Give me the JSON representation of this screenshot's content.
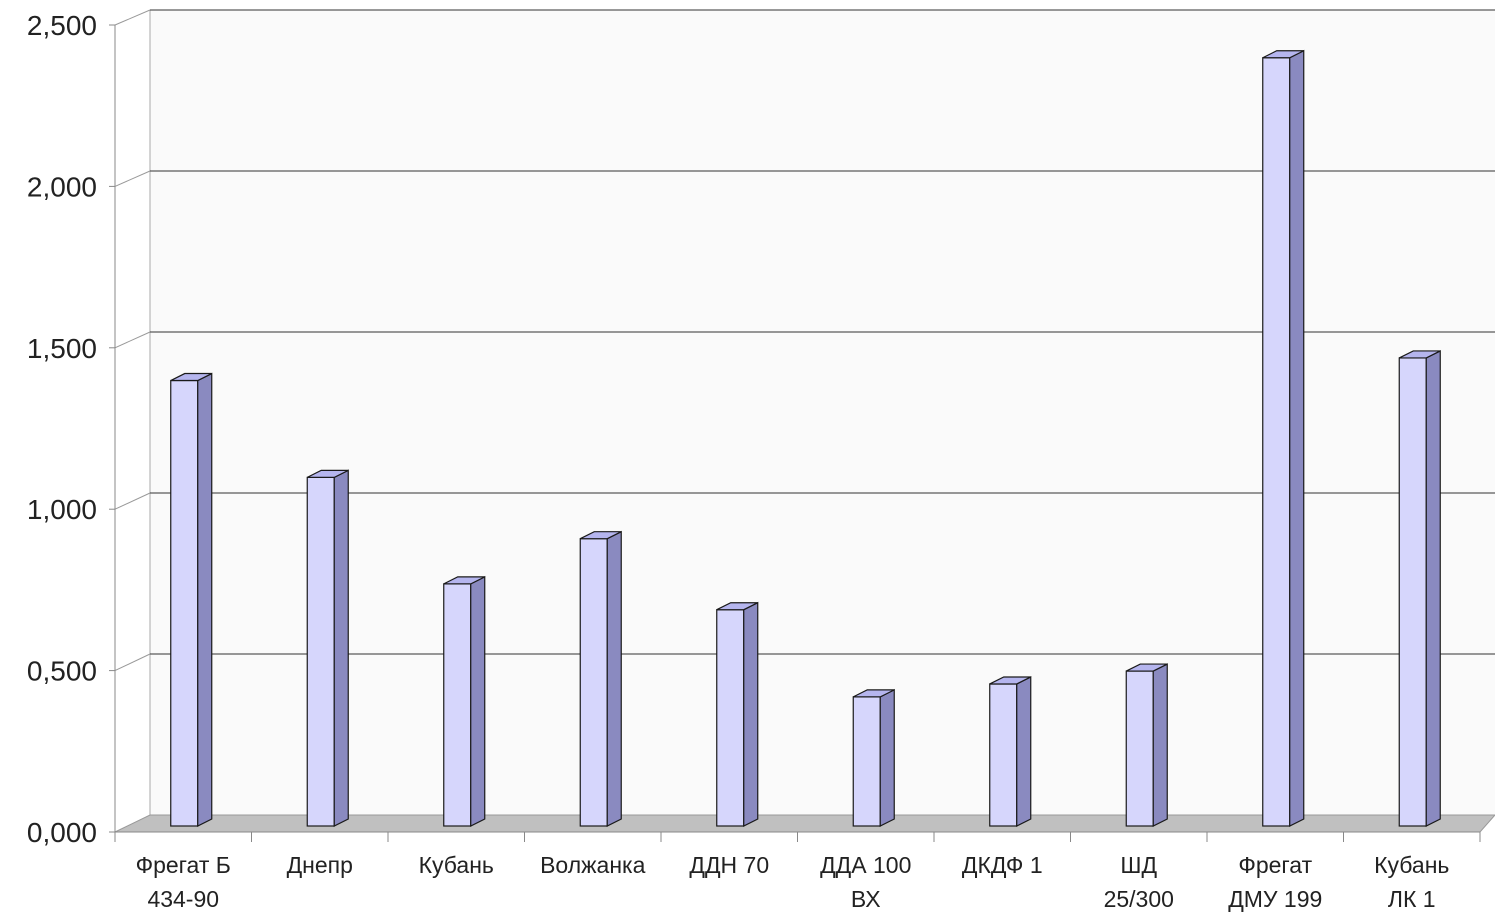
{
  "chart_data": {
    "type": "bar",
    "style": "3d-column",
    "categories": [
      [
        "Фрегат Б",
        "434-90"
      ],
      [
        "Днепр"
      ],
      [
        "Кубань"
      ],
      [
        "Волжанка"
      ],
      [
        "ДДН 70"
      ],
      [
        "ДДА 100",
        "ВХ"
      ],
      [
        "ДКДФ 1"
      ],
      [
        "ШД",
        "25/300"
      ],
      [
        "Фрегат",
        "ДМУ 199"
      ],
      [
        "Кубань",
        "ЛК 1"
      ]
    ],
    "values": [
      1.38,
      1.08,
      0.75,
      0.89,
      0.67,
      0.4,
      0.44,
      0.48,
      2.38,
      1.45
    ],
    "y_tick_labels": [
      "0,000",
      "0,500",
      "1,000",
      "1,500",
      "2,000",
      "2,500"
    ],
    "y_ticks": [
      0,
      0.5,
      1.0,
      1.5,
      2.0,
      2.5
    ],
    "ylim": [
      0,
      2.5
    ],
    "title": "",
    "xlabel": "",
    "ylabel": "",
    "grid": true,
    "legend": "none",
    "colors": {
      "bar_front": "#d6d6fc",
      "bar_side": "#8a8ac0",
      "bar_top": "#b5b5ee",
      "bar_stroke": "#1a1a1a",
      "floor": "#c0c0c0",
      "back_wall": "#fafafa",
      "gridline": "#333333",
      "axis": "#888888",
      "text": "#222222"
    }
  }
}
